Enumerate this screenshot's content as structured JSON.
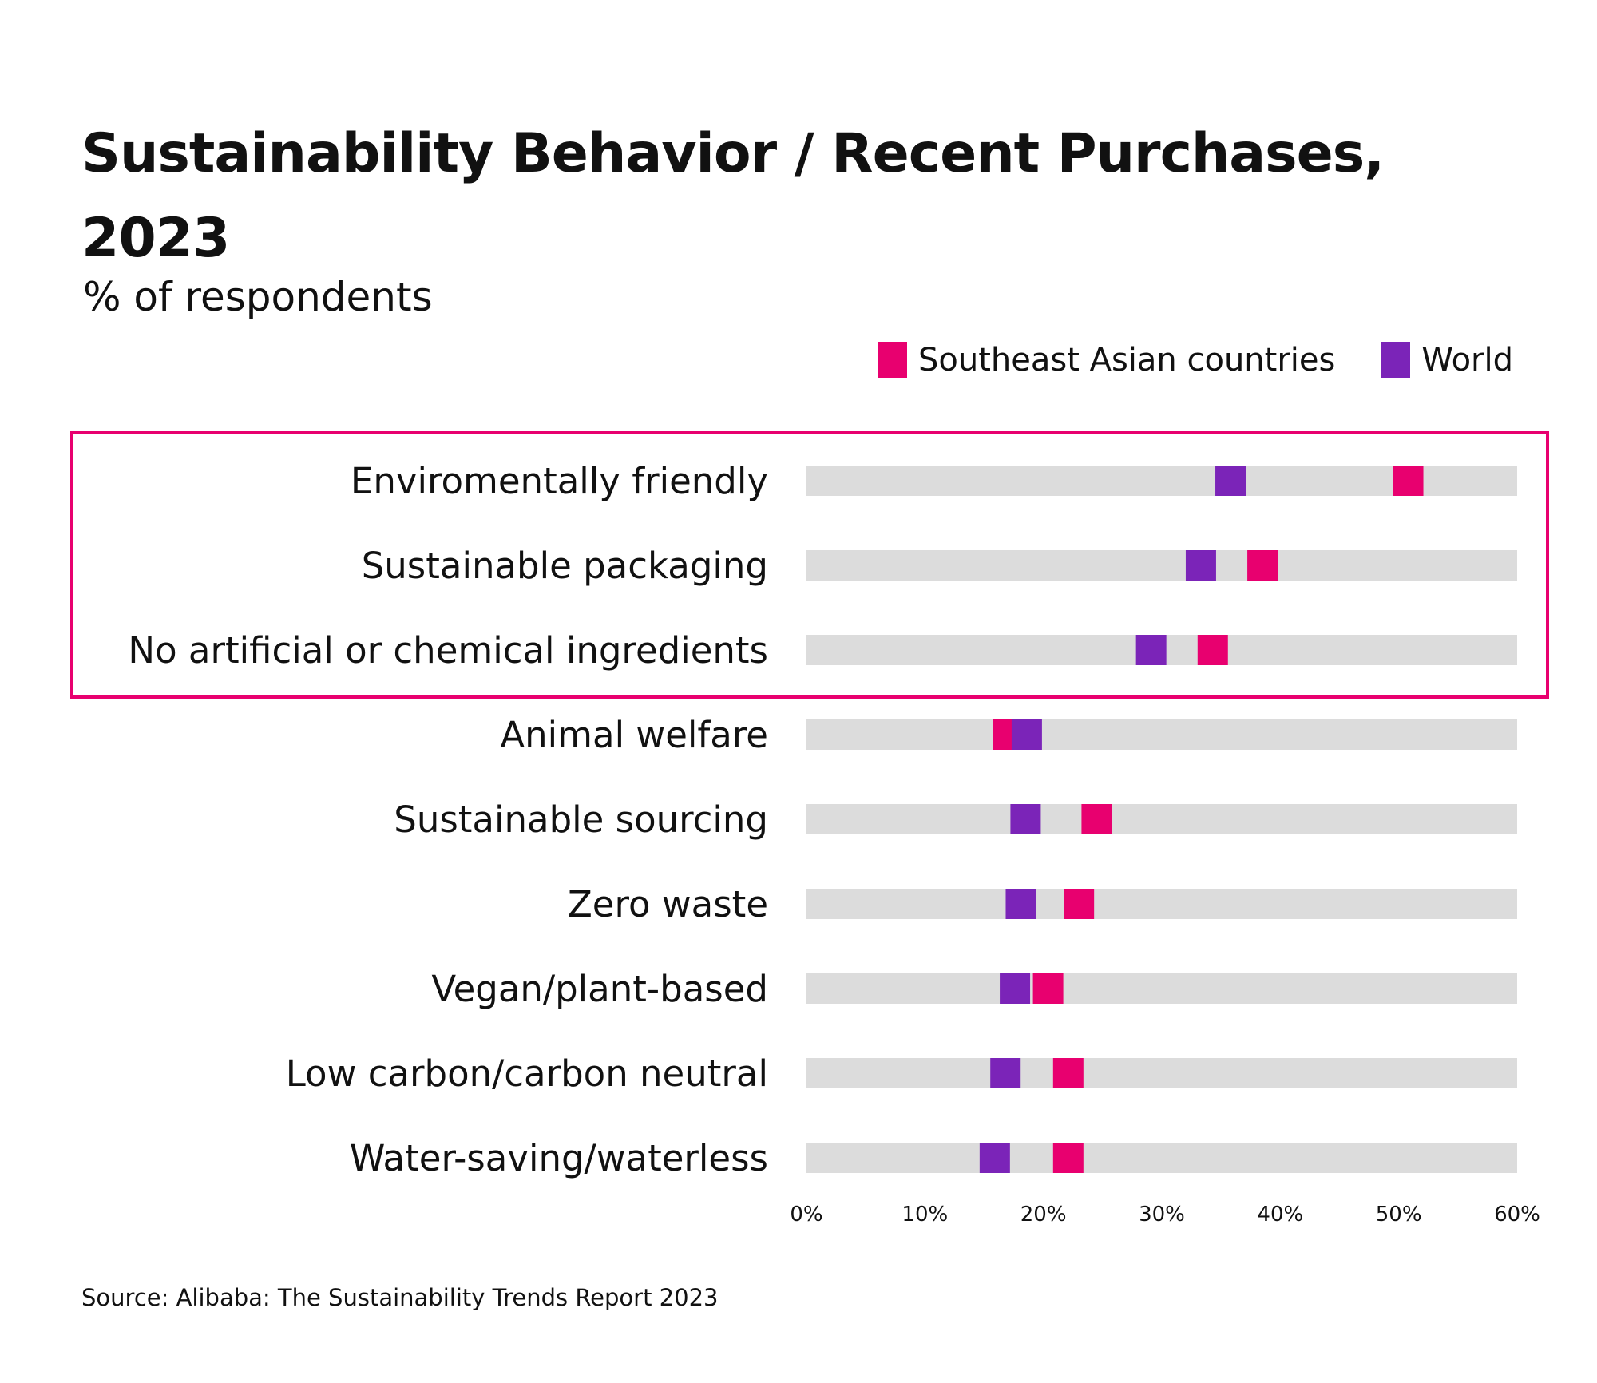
{
  "header": {
    "title": "Sustainability Behavior / Recent Purchases, 2023",
    "subtitle": "% of respondents"
  },
  "footer": {
    "source": "Source: Alibaba: The Sustainability Trends Report 2023"
  },
  "colors": {
    "southeast_asia": "#e8006f",
    "world": "#7b24b8",
    "track": "#dcdcdc",
    "highlight_box": "#e8006f"
  },
  "chart_data": {
    "type": "dot-range",
    "title": "Sustainability Behavior / Recent Purchases, 2023",
    "subtitle": "% of respondents",
    "xlabel": "",
    "ylabel": "",
    "xlim": [
      0,
      60
    ],
    "x_ticks": [
      "0%",
      "10%",
      "20%",
      "30%",
      "40%",
      "50%",
      "60%"
    ],
    "grid": false,
    "legend_position": "top-right",
    "categories": [
      "Enviromentally friendly",
      "Sustainable packaging",
      "No artificial or chemical ingredients",
      "Animal welfare",
      "Sustainable sourcing",
      "Zero waste",
      "Vegan/plant-based",
      "Low carbon/carbon neutral",
      "Water-saving/waterless"
    ],
    "series": [
      {
        "name": "Southeast Asian countries",
        "color": "#e8006f",
        "values": [
          50.8,
          38.5,
          34.3,
          17.0,
          24.5,
          23.0,
          20.4,
          22.1,
          22.1
        ]
      },
      {
        "name": "World",
        "color": "#7b24b8",
        "values": [
          35.8,
          33.3,
          29.1,
          18.6,
          18.5,
          18.1,
          17.6,
          16.8,
          15.9
        ]
      }
    ],
    "highlighted_categories": [
      "Enviromentally friendly",
      "Sustainable packaging",
      "No artificial or chemical ingredients"
    ]
  }
}
